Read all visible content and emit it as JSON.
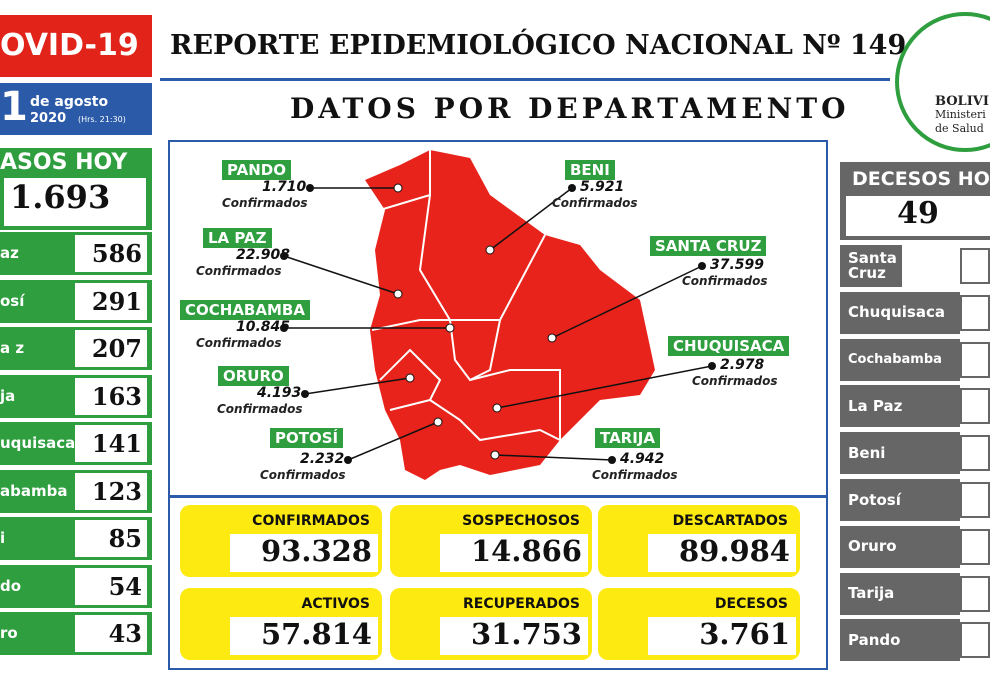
{
  "header": {
    "title_left": "OVID-19",
    "title": "REPORTE EPIDEMIOLÓGICO NACIONAL Nº 149",
    "date_day": "1",
    "date_text": "de agosto",
    "date_year": "2020",
    "date_time": "(Hrs. 21:30)",
    "section": "DATOS POR DEPARTAMENTO",
    "logo": [
      "BOLIVI",
      "Ministeri",
      "de Salud"
    ]
  },
  "cases_today": {
    "title": "ASOS HOY",
    "total": "1.693",
    "rows": [
      {
        "name": "az",
        "value": "586"
      },
      {
        "name": "osí",
        "value": "291"
      },
      {
        "name": "a z",
        "value": "207"
      },
      {
        "name": "ja",
        "value": "163"
      },
      {
        "name": "uquisaca",
        "value": "141"
      },
      {
        "name": "abamba",
        "value": "123"
      },
      {
        "name": "i",
        "value": "85"
      },
      {
        "name": "do",
        "value": "54"
      },
      {
        "name": "ro",
        "value": "43"
      }
    ]
  },
  "map": {
    "departments": [
      {
        "name": "PANDO",
        "value": "1.710",
        "note": "Confirmados"
      },
      {
        "name": "LA PAZ",
        "value": "22.908",
        "note": "Confirmados"
      },
      {
        "name": "COCHABAMBA",
        "value": "10.845",
        "note": "Confirmados"
      },
      {
        "name": "ORURO",
        "value": "4.193",
        "note": "Confirmados"
      },
      {
        "name": "POTOSÍ",
        "value": "2.232",
        "note": "Confirmados"
      },
      {
        "name": "BENI",
        "value": "5.921",
        "note": "Confirmados"
      },
      {
        "name": "SANTA CRUZ",
        "value": "37.599",
        "note": "Confirmados"
      },
      {
        "name": "CHUQUISACA",
        "value": "2.978",
        "note": "Confirmados"
      },
      {
        "name": "TARIJA",
        "value": "4.942",
        "note": "Confirmados"
      }
    ]
  },
  "summary": [
    {
      "label": "CONFIRMADOS",
      "value": "93.328"
    },
    {
      "label": "SOSPECHOSOS",
      "value": "14.866"
    },
    {
      "label": "DESCARTADOS",
      "value": "89.984"
    },
    {
      "label": "ACTIVOS",
      "value": "57.814"
    },
    {
      "label": "RECUPERADOS",
      "value": "31.753"
    },
    {
      "label": "DECESOS",
      "value": "3.761"
    }
  ],
  "deaths_today": {
    "title": "DECESOS HO",
    "total": "49",
    "rows": [
      "Santa Cruz",
      "Chuquisaca",
      "Cochabamba",
      "La Paz",
      "Beni",
      "Potosí",
      "Oruro",
      "Tarija",
      "Pando"
    ]
  }
}
